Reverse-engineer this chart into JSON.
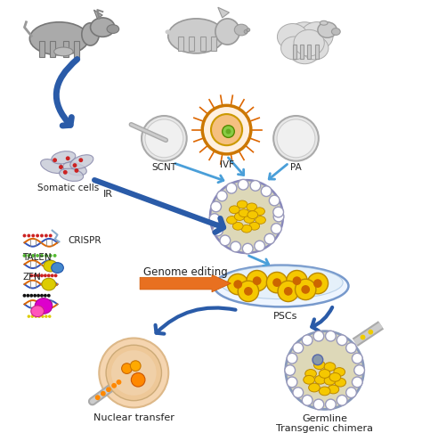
{
  "bg_color": "#ffffff",
  "arrow_blue_dark": "#2A5BA8",
  "arrow_blue_light": "#4A9FD9",
  "arrow_orange": "#E87020",
  "text_color": "#222222",
  "yellow_cell": "#F5C800",
  "green_dots": "#55BB33",
  "red_dots": "#CC2222",
  "dna_blue": "#3355BB",
  "dna_orange": "#DD6600",
  "labels": {
    "somatic": "Somatic cells",
    "scnt": "SCNT",
    "ivf": "IVF",
    "pa": "PA",
    "ir": "IR",
    "genome_editing": "Genome editing",
    "pscs": "PSCs",
    "nuclear_transfer": "Nuclear transfer",
    "germline": "Germline",
    "transgenic": "Transgenic chimera",
    "crispr": "CRISPR",
    "talen": "TALEN",
    "zfn": "ZFN"
  },
  "figsize": [
    4.74,
    4.86
  ],
  "dpi": 100
}
